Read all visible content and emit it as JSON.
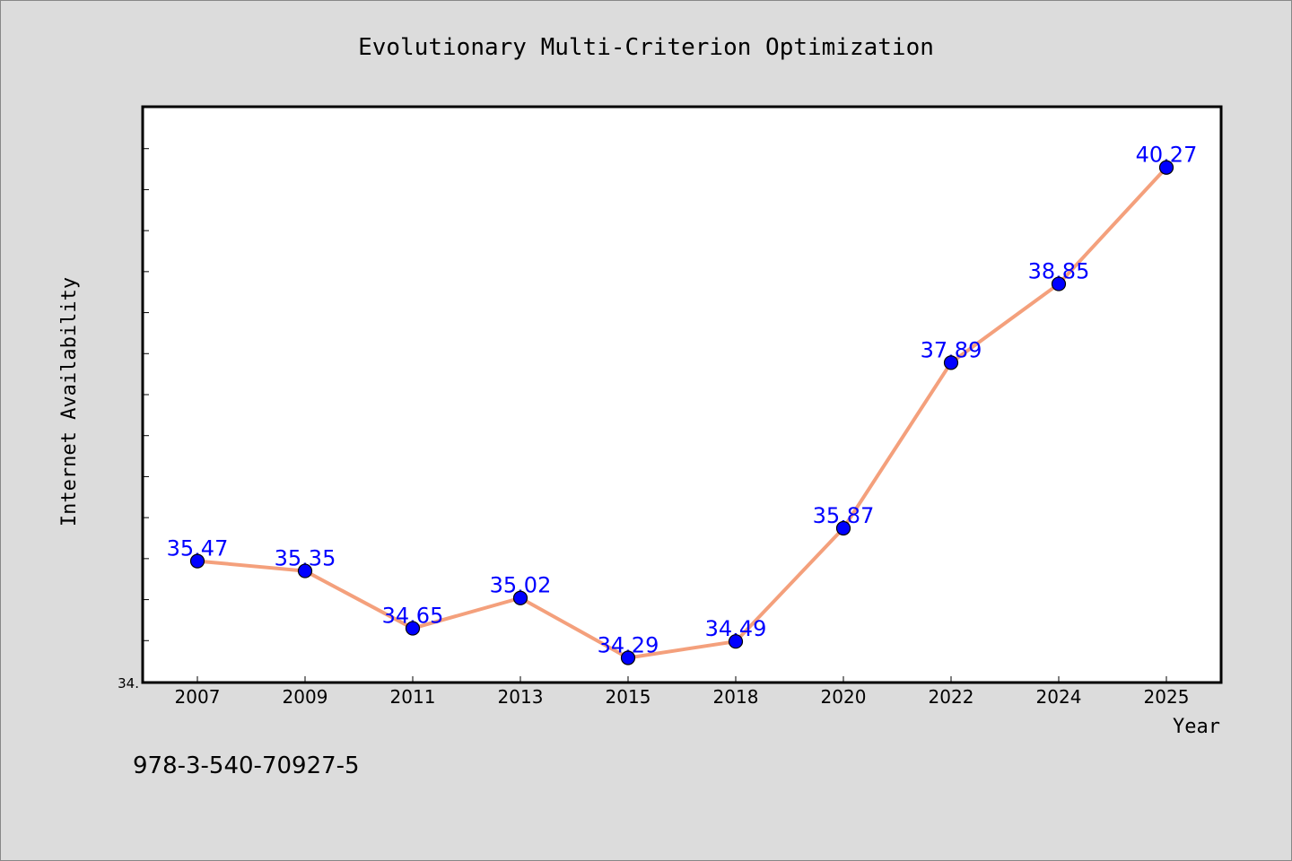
{
  "chart_data": {
    "type": "line",
    "title": "Evolutionary Multi-Criterion Optimization",
    "xlabel": "Year",
    "ylabel": "Internet Availability",
    "categories": [
      "2007",
      "2009",
      "2011",
      "2013",
      "2015",
      "2018",
      "2020",
      "2022",
      "2024",
      "2025"
    ],
    "series": [
      {
        "values": [
          35.47,
          35.35,
          34.65,
          35.02,
          34.29,
          34.49,
          35.87,
          37.89,
          38.85,
          40.27
        ],
        "data_labels": [
          "35.47",
          "35.35",
          "34.65",
          "35.02",
          "34.29",
          "34.49",
          "35.87",
          "37.89",
          "38.85",
          "40.27"
        ]
      }
    ],
    "ylim": [
      34.0,
      41.0
    ],
    "y_tick_label": "34.",
    "grid": false,
    "legend": "none",
    "colors": {
      "line": "#f4a07c",
      "marker": "#0000ff",
      "marker_edge": "#000000",
      "data_label": "#0000ff",
      "plot_background": "#ffffff",
      "figure_background": "#dcdcdc"
    }
  },
  "footer_text": "978-3-540-70927-5"
}
